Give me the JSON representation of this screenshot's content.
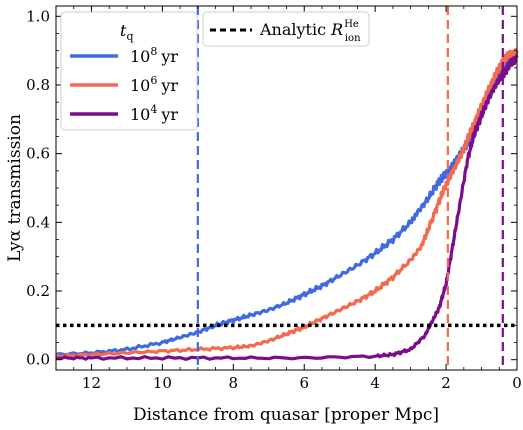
{
  "chart_data": {
    "type": "line",
    "xlabel": "Distance from quasar [proper Mpc]",
    "ylabel": "Lyα transmission",
    "xlim": [
      13,
      0
    ],
    "ylim": [
      -0.03,
      1.03
    ],
    "x_ticks": [
      12,
      10,
      8,
      6,
      4,
      2,
      0
    ],
    "y_ticks": [
      0.0,
      0.2,
      0.4,
      0.6,
      0.8,
      1.0
    ],
    "x_tick_labels": [
      "12",
      "10",
      "8",
      "6",
      "4",
      "2",
      "0"
    ],
    "y_tick_labels": [
      "0.0",
      "0.2",
      "0.4",
      "0.6",
      "0.8",
      "1.0"
    ],
    "grid": false,
    "legend_title": "t_q",
    "legend_title_main": "t",
    "legend_title_sub": "q",
    "legend_placement": "top-left",
    "series": [
      {
        "name": "10^8 yr",
        "base": "10",
        "exp": "8",
        "unit": "yr",
        "color": "#4169E1",
        "x": [
          13,
          12,
          11,
          10,
          9.5,
          9,
          8.5,
          8,
          7.5,
          7,
          6.5,
          6,
          5.5,
          5,
          4.5,
          4,
          3.5,
          3,
          2.8,
          2.5,
          2.2,
          2,
          1.8,
          1.6,
          1.4,
          1.2,
          1,
          0.8,
          0.6,
          0.4,
          0.2,
          0
        ],
        "y": [
          0.015,
          0.02,
          0.03,
          0.05,
          0.065,
          0.08,
          0.1,
          0.115,
          0.13,
          0.145,
          0.165,
          0.19,
          0.215,
          0.245,
          0.275,
          0.31,
          0.35,
          0.4,
          0.43,
          0.47,
          0.52,
          0.54,
          0.57,
          0.6,
          0.63,
          0.66,
          0.72,
          0.77,
          0.81,
          0.85,
          0.88,
          0.9
        ]
      },
      {
        "name": "10^6 yr",
        "base": "10",
        "exp": "6",
        "unit": "yr",
        "color": "#F26B50",
        "x": [
          13,
          12,
          11,
          10,
          9,
          8,
          7.5,
          7,
          6.5,
          6,
          5.5,
          5,
          4.5,
          4,
          3.5,
          3,
          2.7,
          2.5,
          2.2,
          2,
          1.8,
          1.6,
          1.4,
          1.2,
          1,
          0.8,
          0.6,
          0.4,
          0.2,
          0
        ],
        "y": [
          0.01,
          0.015,
          0.02,
          0.025,
          0.03,
          0.035,
          0.04,
          0.055,
          0.075,
          0.095,
          0.12,
          0.145,
          0.17,
          0.2,
          0.24,
          0.29,
          0.33,
          0.38,
          0.46,
          0.51,
          0.55,
          0.59,
          0.64,
          0.69,
          0.74,
          0.79,
          0.83,
          0.87,
          0.89,
          0.9
        ]
      },
      {
        "name": "10^4 yr",
        "base": "10",
        "exp": "4",
        "unit": "yr",
        "color": "#7B0C8A",
        "x": [
          13,
          12,
          10,
          8,
          6,
          4,
          3.5,
          3,
          2.6,
          2.4,
          2.2,
          2.0,
          1.8,
          1.6,
          1.4,
          1.2,
          1.0,
          0.8,
          0.6,
          0.4,
          0.2,
          0
        ],
        "y": [
          0.005,
          0.005,
          0.005,
          0.005,
          0.005,
          0.01,
          0.015,
          0.03,
          0.07,
          0.11,
          0.15,
          0.22,
          0.34,
          0.46,
          0.58,
          0.66,
          0.71,
          0.76,
          0.8,
          0.83,
          0.86,
          0.88
        ]
      }
    ],
    "analytic_line": {
      "label_main": "Analytic",
      "label_math": "R",
      "label_sup": "He",
      "label_sub": "ion",
      "y": 0.1,
      "color": "#000000"
    },
    "vertical_lines": [
      {
        "x": 9.0,
        "color": "#4169E1"
      },
      {
        "x": 1.95,
        "color": "#F26B50"
      },
      {
        "x": 0.4,
        "color": "#7B0C8A"
      }
    ]
  }
}
